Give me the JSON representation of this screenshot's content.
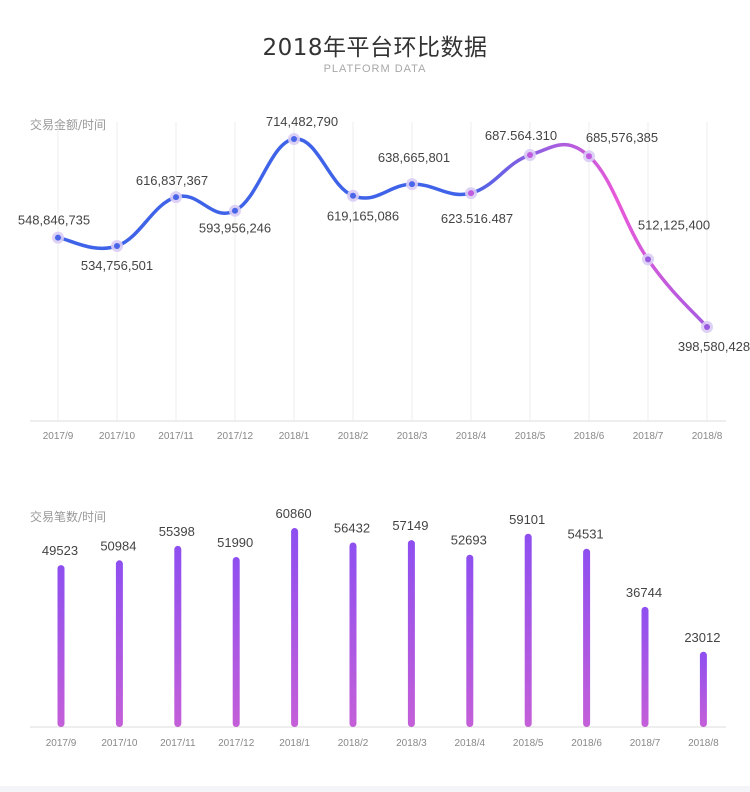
{
  "header": {
    "title": "2018年平台环比数据",
    "subtitle": "PLATFORM DATA"
  },
  "colors": {
    "line_start": "#3f63e8",
    "line_end": "#e85ad9",
    "line_tail": "#a55be0",
    "bar_top": "#8e4ff0",
    "bar_bottom": "#c45fd8",
    "grid": "#eeeeee"
  },
  "chart_data": [
    {
      "type": "line",
      "ylabel": "交易金额/时间",
      "categories": [
        "2017/9",
        "2017/10",
        "2017/11",
        "2017/12",
        "2018/1",
        "2018/2",
        "2018/3",
        "2018/4",
        "2018/5",
        "2018/6",
        "2018/7",
        "2018/8"
      ],
      "values": [
        548846735,
        534756501,
        616837367,
        593956246,
        714482790,
        619165086,
        638665801,
        623516487,
        687564310,
        685576385,
        512125400,
        398580428
      ],
      "data_labels": [
        "548,846,735",
        "534,756,501",
        "616,837,367",
        "593,956,246",
        "714,482,790",
        "619,165,086",
        "638,665,801",
        "623.516.487",
        "687.564.310",
        "685,576,385",
        "512,125,400",
        "398,580,428"
      ],
      "grid": true,
      "legend": "none"
    },
    {
      "type": "bar",
      "ylabel": "交易笔数/时间",
      "categories": [
        "2017/9",
        "2017/10",
        "2017/11",
        "2017/12",
        "2018/1",
        "2018/2",
        "2018/3",
        "2018/4",
        "2018/5",
        "2018/6",
        "2018/7",
        "2018/8"
      ],
      "values": [
        49523,
        50984,
        55398,
        51990,
        60860,
        56432,
        57149,
        52693,
        59101,
        54531,
        36744,
        23012
      ],
      "grid": false,
      "legend": "none"
    }
  ]
}
